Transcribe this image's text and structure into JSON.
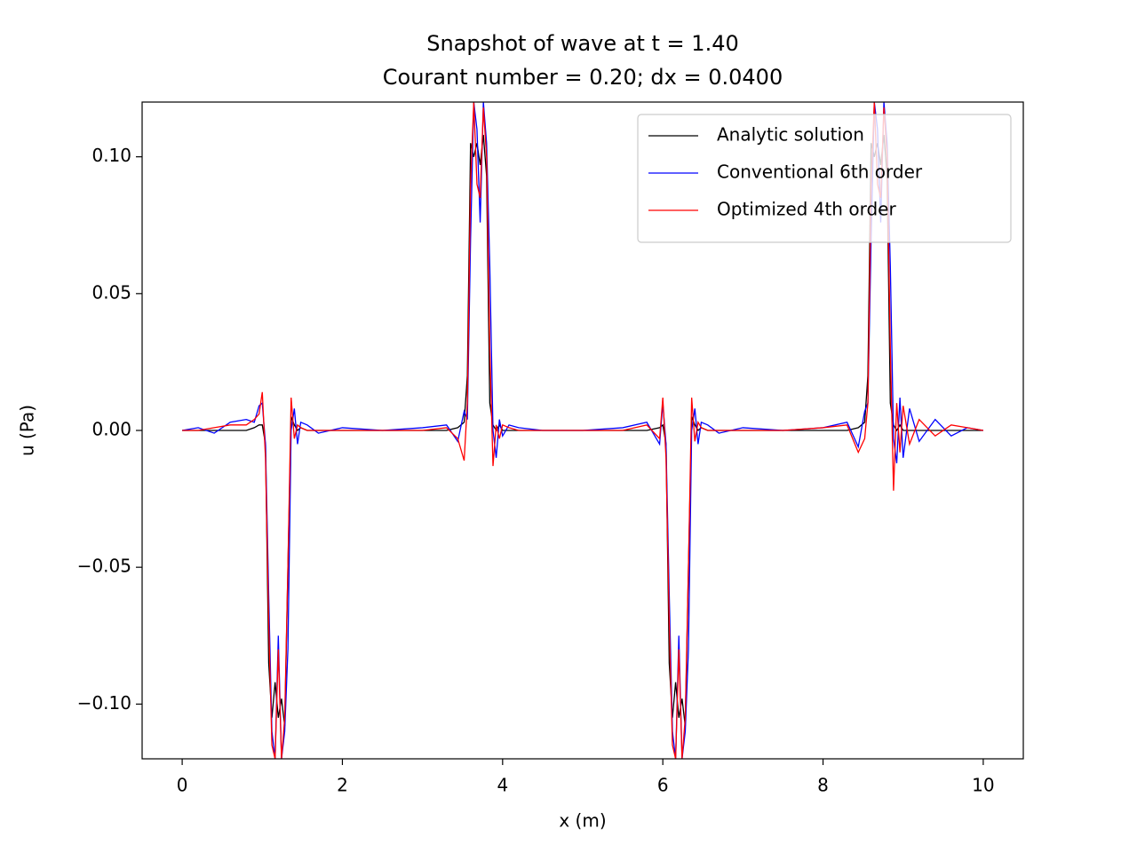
{
  "chart_data": {
    "type": "line",
    "title": "Snapshot of wave at t = 1.40",
    "subtitle": "Courant number = 0.20; dx = 0.0400",
    "xlabel": "x (m)",
    "ylabel": "u (Pa)",
    "xlim": [
      -0.5,
      10.5
    ],
    "ylim": [
      -0.12,
      0.12
    ],
    "xticks": [
      0,
      2,
      4,
      6,
      8,
      10
    ],
    "yticks": [
      {
        "value": -0.1,
        "label": "−0.10"
      },
      {
        "value": -0.05,
        "label": "−0.05"
      },
      {
        "value": 0,
        "label": "0.00"
      },
      {
        "value": 0.05,
        "label": "0.05"
      },
      {
        "value": 0.1,
        "label": "0.10"
      }
    ],
    "legend": "upper right",
    "grid": false,
    "x": [
      0,
      0.2,
      0.4,
      0.6,
      0.8,
      0.9,
      0.96,
      1.0,
      1.04,
      1.08,
      1.12,
      1.16,
      1.2,
      1.24,
      1.28,
      1.32,
      1.36,
      1.4,
      1.44,
      1.48,
      1.56,
      1.7,
      2.0,
      2.5,
      3.0,
      3.3,
      3.44,
      3.52,
      3.56,
      3.6,
      3.64,
      3.68,
      3.72,
      3.76,
      3.8,
      3.84,
      3.88,
      3.92,
      3.96,
      4.0,
      4.08,
      4.2,
      4.5,
      5.0,
      5.5,
      5.8,
      5.96,
      6.0,
      6.04,
      6.08,
      6.12,
      6.16,
      6.2,
      6.24,
      6.28,
      6.32,
      6.36,
      6.4,
      6.44,
      6.48,
      6.56,
      6.7,
      7.0,
      7.5,
      8.0,
      8.3,
      8.44,
      8.52,
      8.56,
      8.6,
      8.64,
      8.68,
      8.72,
      8.76,
      8.8,
      8.84,
      8.88,
      8.92,
      8.96,
      9.0,
      9.08,
      9.2,
      9.4,
      9.6,
      9.8,
      10.0
    ],
    "series": [
      {
        "name": "Analytic solution",
        "color": "#000000",
        "values": [
          0,
          0,
          0,
          0,
          0,
          0.001,
          0.002,
          0.002,
          -0.005,
          -0.085,
          -0.105,
          -0.092,
          -0.105,
          -0.098,
          -0.108,
          -0.05,
          0.005,
          0.002,
          0,
          0.001,
          0,
          0,
          0,
          0,
          0,
          0,
          0.001,
          0.003,
          0.02,
          0.105,
          0.1,
          0.105,
          0.097,
          0.108,
          0.093,
          0.01,
          0.002,
          0,
          0.002,
          0,
          0,
          0,
          0,
          0,
          0,
          0,
          0.001,
          0.002,
          -0.005,
          -0.085,
          -0.105,
          -0.092,
          -0.105,
          -0.098,
          -0.108,
          -0.05,
          0.005,
          0.002,
          0,
          0.001,
          0,
          0,
          0,
          0,
          0,
          0,
          0.001,
          0.003,
          0.02,
          0.105,
          0.1,
          0.105,
          0.097,
          0.108,
          0.093,
          0.01,
          0.002,
          0,
          0.002,
          0,
          0,
          0,
          0,
          0,
          0,
          0
        ]
      },
      {
        "name": "Conventional 6th order",
        "color": "#0000ff",
        "values": [
          0,
          0.001,
          -0.001,
          0.003,
          0.004,
          0.003,
          0.009,
          0.01,
          -0.005,
          -0.06,
          -0.11,
          -0.12,
          -0.075,
          -0.12,
          -0.11,
          -0.08,
          0,
          0.008,
          -0.005,
          0.003,
          0.002,
          -0.001,
          0.001,
          0,
          0.001,
          0.002,
          -0.004,
          0.007,
          0.004,
          0.07,
          0.12,
          0.11,
          0.076,
          0.12,
          0.105,
          0.06,
          0,
          -0.01,
          0.004,
          -0.002,
          0.002,
          0.001,
          0,
          0,
          0.001,
          0.003,
          -0.005,
          0.01,
          -0.005,
          -0.06,
          -0.11,
          -0.12,
          -0.075,
          -0.12,
          -0.11,
          -0.08,
          0,
          0.008,
          -0.005,
          0.003,
          0.002,
          -0.001,
          0.001,
          0,
          0.001,
          0.003,
          -0.006,
          0.007,
          0.01,
          0.07,
          0.12,
          0.11,
          0.076,
          0.12,
          0.105,
          0.06,
          -0.003,
          -0.012,
          0.012,
          -0.01,
          0.008,
          -0.004,
          0.004,
          -0.002,
          0.001,
          0
        ]
      },
      {
        "name": "Optimized 4th order",
        "color": "#ff0000",
        "values": [
          0,
          0,
          0.001,
          0.002,
          0.002,
          0.004,
          0.006,
          0.014,
          -0.01,
          -0.07,
          -0.115,
          -0.12,
          -0.08,
          -0.12,
          -0.105,
          -0.05,
          0.012,
          -0.003,
          0.002,
          0.001,
          0,
          0,
          0,
          0,
          0,
          0.001,
          -0.003,
          -0.011,
          0.01,
          0.09,
          0.12,
          0.09,
          0.085,
          0.118,
          0.1,
          0.03,
          -0.013,
          0.002,
          -0.003,
          0.002,
          0.001,
          0,
          0,
          0,
          0,
          0.002,
          -0.003,
          0.012,
          -0.01,
          -0.07,
          -0.115,
          -0.12,
          -0.08,
          -0.12,
          -0.105,
          -0.05,
          0.012,
          -0.004,
          0.003,
          0.001,
          0,
          0,
          0,
          0,
          0.001,
          0.002,
          -0.008,
          -0.003,
          0.01,
          0.09,
          0.12,
          0.09,
          0.085,
          0.118,
          0.1,
          0.03,
          -0.022,
          0.01,
          -0.008,
          0.009,
          -0.005,
          0.004,
          -0.002,
          0.002,
          0.001,
          0
        ]
      }
    ]
  }
}
